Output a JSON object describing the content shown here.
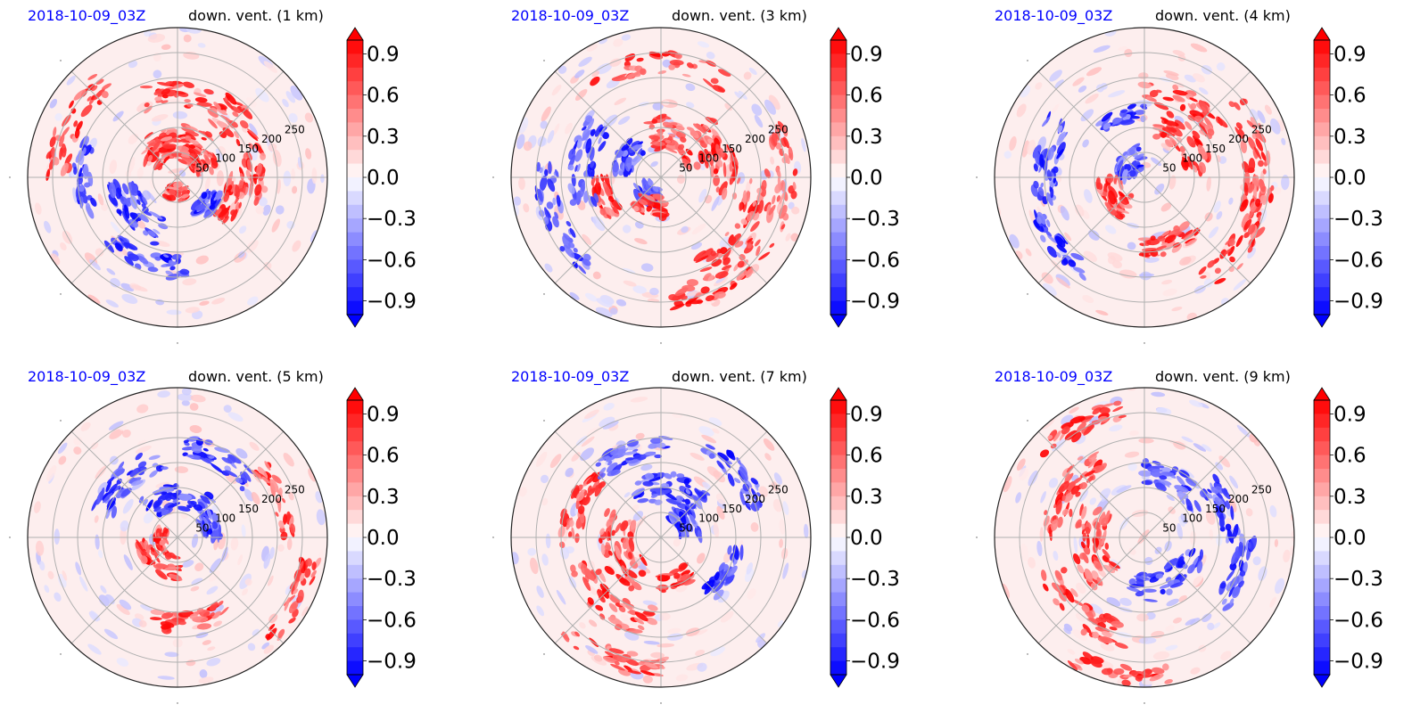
{
  "figure": {
    "panels": [
      {
        "date": "2018-10-09_03Z",
        "title": "down. vent. (1 km)"
      },
      {
        "date": "2018-10-09_03Z",
        "title": "down. vent. (3 km)"
      },
      {
        "date": "2018-10-09_03Z",
        "title": "down. vent. (4 km)"
      },
      {
        "date": "2018-10-09_03Z",
        "title": "down. vent. (5 km)"
      },
      {
        "date": "2018-10-09_03Z",
        "title": "down. vent. (7 km)"
      },
      {
        "date": "2018-10-09_03Z",
        "title": "down. vent. (9 km)"
      }
    ]
  },
  "chart_data": [
    {
      "type": "heatmap",
      "projection": "polar",
      "date_label": "2018-10-09_03Z",
      "title": "down. vent. (1 km)",
      "radial_ticks": [
        "50",
        "100",
        "150",
        "200",
        "250"
      ],
      "radial_tick_values": [
        50,
        100,
        150,
        200,
        250
      ],
      "rmax": 300,
      "colorbar": {
        "ticks": [
          "0.9",
          "0.6",
          "0.3",
          "0.0",
          "−0.3",
          "−0.6",
          "−0.9"
        ],
        "range": [
          -1.0,
          1.0
        ],
        "extend": "both",
        "cmap": "bwr"
      },
      "features": [
        {
          "sign": 1,
          "theta": 45,
          "r": 60,
          "w": 70,
          "len": 45
        },
        {
          "sign": 1,
          "theta": 90,
          "r": 75,
          "w": 75,
          "len": 55
        },
        {
          "sign": 1,
          "theta": 120,
          "r": 65,
          "w": 65,
          "len": 40
        },
        {
          "sign": 1,
          "theta": 20,
          "r": 150,
          "w": 80,
          "len": 45
        },
        {
          "sign": 1,
          "theta": 340,
          "r": 120,
          "w": 50,
          "len": 35
        },
        {
          "sign": 1,
          "theta": 270,
          "r": 30,
          "w": 60,
          "len": 30
        },
        {
          "sign": 1,
          "theta": 70,
          "r": 170,
          "w": 90,
          "len": 45
        },
        {
          "sign": 1,
          "theta": 150,
          "r": 240,
          "w": 60,
          "len": 40
        },
        {
          "sign": -1,
          "theta": 220,
          "r": 110,
          "w": 70,
          "len": 50
        },
        {
          "sign": -1,
          "theta": 250,
          "r": 180,
          "w": 50,
          "len": 35
        },
        {
          "sign": -1,
          "theta": 320,
          "r": 80,
          "w": 40,
          "len": 30
        },
        {
          "sign": -1,
          "theta": 180,
          "r": 190,
          "w": 45,
          "len": 30
        }
      ]
    },
    {
      "type": "heatmap",
      "projection": "polar",
      "date_label": "2018-10-09_03Z",
      "title": "down. vent. (3 km)",
      "radial_ticks": [
        "50",
        "100",
        "150",
        "200",
        "250"
      ],
      "radial_tick_values": [
        50,
        100,
        150,
        200,
        250
      ],
      "rmax": 300,
      "colorbar": {
        "ticks": [
          "0.9",
          "0.6",
          "0.3",
          "0.0",
          "−0.3",
          "−0.6",
          "−0.9"
        ],
        "range": [
          -1.0,
          1.0
        ],
        "extend": "both",
        "cmap": "bwr"
      },
      "features": [
        {
          "sign": 1,
          "theta": 60,
          "r": 90,
          "w": 90,
          "len": 55
        },
        {
          "sign": 1,
          "theta": 20,
          "r": 130,
          "w": 70,
          "len": 45
        },
        {
          "sign": 1,
          "theta": 330,
          "r": 200,
          "w": 70,
          "len": 50
        },
        {
          "sign": 1,
          "theta": 300,
          "r": 240,
          "w": 60,
          "len": 40
        },
        {
          "sign": 1,
          "theta": 90,
          "r": 230,
          "w": 70,
          "len": 35
        },
        {
          "sign": 1,
          "theta": 0,
          "r": 250,
          "w": 45,
          "len": 35
        },
        {
          "sign": 1,
          "theta": 200,
          "r": 120,
          "w": 40,
          "len": 30
        },
        {
          "sign": -1,
          "theta": 170,
          "r": 160,
          "w": 60,
          "len": 45
        },
        {
          "sign": -1,
          "theta": 200,
          "r": 230,
          "w": 60,
          "len": 40
        },
        {
          "sign": -1,
          "theta": 150,
          "r": 80,
          "w": 50,
          "len": 35
        },
        {
          "sign": -1,
          "theta": 230,
          "r": 40,
          "w": 60,
          "len": 35
        },
        {
          "sign": 1,
          "theta": 250,
          "r": 60,
          "w": 50,
          "len": 35
        }
      ]
    },
    {
      "type": "heatmap",
      "projection": "polar",
      "date_label": "2018-10-09_03Z",
      "title": "down. vent. (4 km)",
      "radial_ticks": [
        "50",
        "100",
        "150",
        "200",
        "250"
      ],
      "radial_tick_values": [
        50,
        100,
        150,
        200,
        250
      ],
      "rmax": 300,
      "colorbar": {
        "ticks": [
          "0.9",
          "0.6",
          "0.3",
          "0.0",
          "−0.3",
          "−0.6",
          "−0.9"
        ],
        "range": [
          -1.0,
          1.0
        ],
        "extend": "both",
        "cmap": "bwr"
      },
      "features": [
        {
          "sign": 1,
          "theta": 40,
          "r": 110,
          "w": 70,
          "len": 45
        },
        {
          "sign": 1,
          "theta": 10,
          "r": 230,
          "w": 60,
          "len": 45
        },
        {
          "sign": 1,
          "theta": 330,
          "r": 240,
          "w": 60,
          "len": 45
        },
        {
          "sign": 1,
          "theta": 60,
          "r": 170,
          "w": 60,
          "len": 40
        },
        {
          "sign": 1,
          "theta": 210,
          "r": 70,
          "w": 60,
          "len": 40
        },
        {
          "sign": 1,
          "theta": 290,
          "r": 140,
          "w": 50,
          "len": 35
        },
        {
          "sign": -1,
          "theta": 140,
          "r": 40,
          "w": 80,
          "len": 40
        },
        {
          "sign": -1,
          "theta": 170,
          "r": 200,
          "w": 50,
          "len": 45
        },
        {
          "sign": -1,
          "theta": 220,
          "r": 220,
          "w": 40,
          "len": 30
        },
        {
          "sign": -1,
          "theta": 110,
          "r": 130,
          "w": 40,
          "len": 25
        }
      ]
    },
    {
      "type": "heatmap",
      "projection": "polar",
      "date_label": "2018-10-09_03Z",
      "title": "down. vent. (5 km)",
      "radial_ticks": [
        "50",
        "100",
        "150",
        "200",
        "250"
      ],
      "radial_tick_values": [
        50,
        100,
        150,
        200,
        250
      ],
      "rmax": 300,
      "colorbar": {
        "ticks": [
          "0.9",
          "0.6",
          "0.3",
          "0.0",
          "−0.3",
          "−0.6",
          "−0.9"
        ],
        "range": [
          -1.0,
          1.0
        ],
        "extend": "both",
        "cmap": "bwr"
      },
      "features": [
        {
          "sign": -1,
          "theta": 90,
          "r": 80,
          "w": 90,
          "len": 45
        },
        {
          "sign": -1,
          "theta": 130,
          "r": 160,
          "w": 60,
          "len": 40
        },
        {
          "sign": -1,
          "theta": 60,
          "r": 180,
          "w": 50,
          "len": 35
        },
        {
          "sign": -1,
          "theta": 20,
          "r": 70,
          "w": 40,
          "len": 30
        },
        {
          "sign": 1,
          "theta": 230,
          "r": 60,
          "w": 80,
          "len": 40
        },
        {
          "sign": 1,
          "theta": 330,
          "r": 270,
          "w": 40,
          "len": 30
        },
        {
          "sign": 1,
          "theta": 20,
          "r": 220,
          "w": 40,
          "len": 30
        },
        {
          "sign": 1,
          "theta": 180,
          "r": 30,
          "w": 50,
          "len": 20
        },
        {
          "sign": 1,
          "theta": 280,
          "r": 170,
          "w": 50,
          "len": 30
        }
      ]
    },
    {
      "type": "heatmap",
      "projection": "polar",
      "date_label": "2018-10-09_03Z",
      "title": "down. vent. (7 km)",
      "radial_ticks": [
        "50",
        "100",
        "150",
        "200",
        "250"
      ],
      "radial_tick_values": [
        50,
        100,
        150,
        200,
        250
      ],
      "rmax": 300,
      "colorbar": {
        "ticks": [
          "0.9",
          "0.6",
          "0.3",
          "0.0",
          "−0.3",
          "−0.6",
          "−0.9"
        ],
        "range": [
          -1.0,
          1.0
        ],
        "extend": "both",
        "cmap": "bwr"
      },
      "features": [
        {
          "sign": 1,
          "theta": 200,
          "r": 90,
          "w": 90,
          "len": 55
        },
        {
          "sign": 1,
          "theta": 230,
          "r": 170,
          "w": 70,
          "len": 50
        },
        {
          "sign": 1,
          "theta": 160,
          "r": 180,
          "w": 50,
          "len": 40
        },
        {
          "sign": 1,
          "theta": 250,
          "r": 260,
          "w": 50,
          "len": 35
        },
        {
          "sign": 1,
          "theta": 290,
          "r": 90,
          "w": 40,
          "len": 30
        },
        {
          "sign": -1,
          "theta": 80,
          "r": 100,
          "w": 80,
          "len": 50
        },
        {
          "sign": -1,
          "theta": 30,
          "r": 60,
          "w": 60,
          "len": 35
        },
        {
          "sign": -1,
          "theta": 40,
          "r": 200,
          "w": 50,
          "len": 35
        },
        {
          "sign": -1,
          "theta": 110,
          "r": 180,
          "w": 50,
          "len": 35
        },
        {
          "sign": -1,
          "theta": 330,
          "r": 150,
          "w": 40,
          "len": 30
        }
      ]
    },
    {
      "type": "heatmap",
      "projection": "polar",
      "date_label": "2018-10-09_03Z",
      "title": "down. vent. (9 km)",
      "radial_ticks": [
        "50",
        "100",
        "150",
        "200",
        "250"
      ],
      "radial_tick_values": [
        50,
        100,
        150,
        200,
        250
      ],
      "rmax": 300,
      "colorbar": {
        "ticks": [
          "0.9",
          "0.6",
          "0.3",
          "0.0",
          "−0.3",
          "−0.6",
          "−0.9"
        ],
        "range": [
          -1.0,
          1.0
        ],
        "extend": "both",
        "cmap": "bwr"
      },
      "features": [
        {
          "sign": 1,
          "theta": 190,
          "r": 110,
          "w": 80,
          "len": 55
        },
        {
          "sign": 1,
          "theta": 150,
          "r": 180,
          "w": 60,
          "len": 45
        },
        {
          "sign": 1,
          "theta": 230,
          "r": 200,
          "w": 60,
          "len": 45
        },
        {
          "sign": 1,
          "theta": 260,
          "r": 280,
          "w": 40,
          "len": 30
        },
        {
          "sign": 1,
          "theta": 120,
          "r": 260,
          "w": 40,
          "len": 30
        },
        {
          "sign": -1,
          "theta": 300,
          "r": 100,
          "w": 90,
          "len": 45
        },
        {
          "sign": -1,
          "theta": 60,
          "r": 130,
          "w": 60,
          "len": 40
        },
        {
          "sign": -1,
          "theta": 20,
          "r": 170,
          "w": 40,
          "len": 30
        },
        {
          "sign": -1,
          "theta": 340,
          "r": 200,
          "w": 40,
          "len": 30
        }
      ]
    }
  ]
}
